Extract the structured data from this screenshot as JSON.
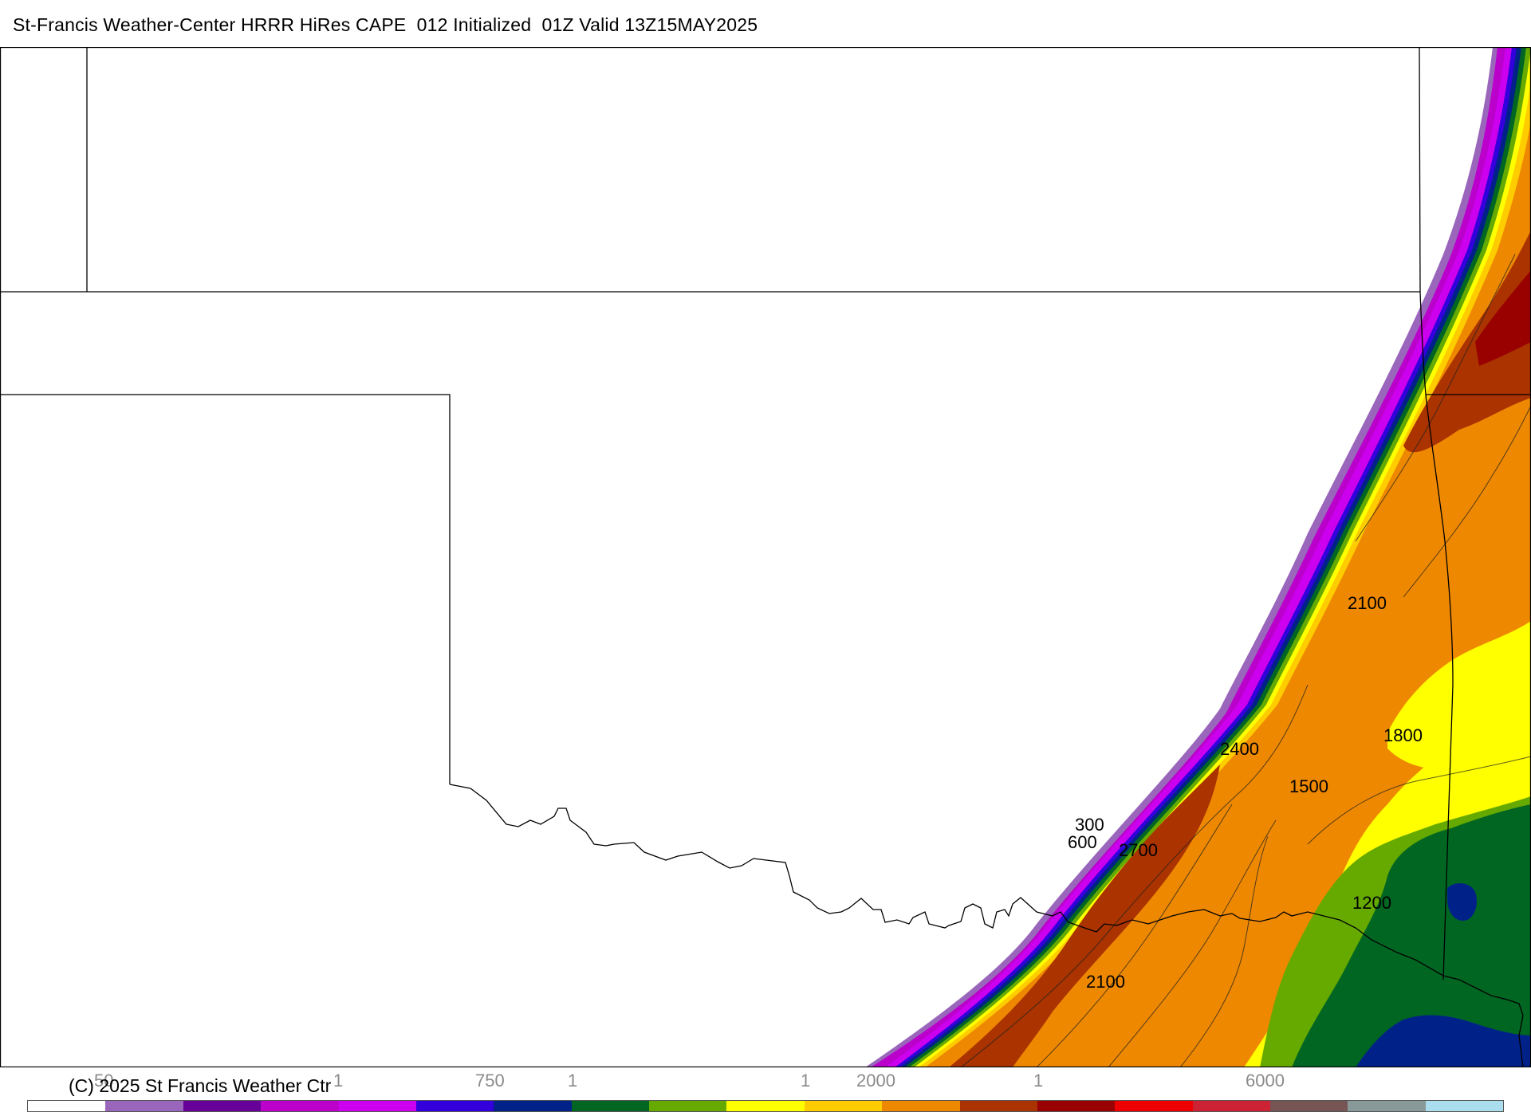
{
  "title": "St-Francis Weather-Center HRRR HiRes CAPE  012 Initialized  01Z Valid 13Z15MAY2025",
  "copyright": "(C) 2025 St Francis Weather Ctr",
  "colors": {
    "scale": [
      "#ffffff",
      "#9966bb",
      "#660099",
      "#bb00cc",
      "#cc00ee",
      "#3300dd",
      "#002288",
      "#006622",
      "#66aa00",
      "#ffff00",
      "#ffcc00",
      "#ee8800",
      "#aa3300",
      "#990000",
      "#ee0000",
      "#cc2233",
      "#775555",
      "#889999",
      "#aaddee"
    ]
  },
  "colorbar_ticks": [
    {
      "label": "50"
    },
    {
      "label": "1"
    },
    {
      "label": "750"
    },
    {
      "label": "1"
    },
    {
      "label": "1"
    },
    {
      "label": "2000"
    },
    {
      "label": "1"
    },
    {
      "label": "6000"
    }
  ],
  "contour_labels": [
    {
      "text": "2100"
    },
    {
      "text": "1800"
    },
    {
      "text": "2400"
    },
    {
      "text": "1500"
    },
    {
      "text": "300"
    },
    {
      "text": "600"
    },
    {
      "text": "2700"
    },
    {
      "text": "1200"
    },
    {
      "text": "2100"
    }
  ]
}
